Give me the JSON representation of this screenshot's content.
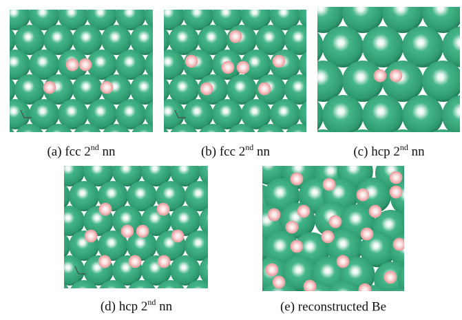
{
  "panels": [
    {
      "caption": {
        "prefix": "(a) fcc 2",
        "sup": "nd",
        "suffix": " nn"
      }
    },
    {
      "caption": {
        "prefix": "(b) fcc 2",
        "sup": "nd",
        "suffix": " nn"
      }
    },
    {
      "caption": {
        "prefix": "(c) hcp 2",
        "sup": "nd",
        "suffix": " nn"
      }
    },
    {
      "caption": {
        "prefix": "(d) hcp 2",
        "sup": "nd",
        "suffix": " nn"
      }
    },
    {
      "caption": {
        "text": "(e) reconstructed Be"
      }
    }
  ]
}
